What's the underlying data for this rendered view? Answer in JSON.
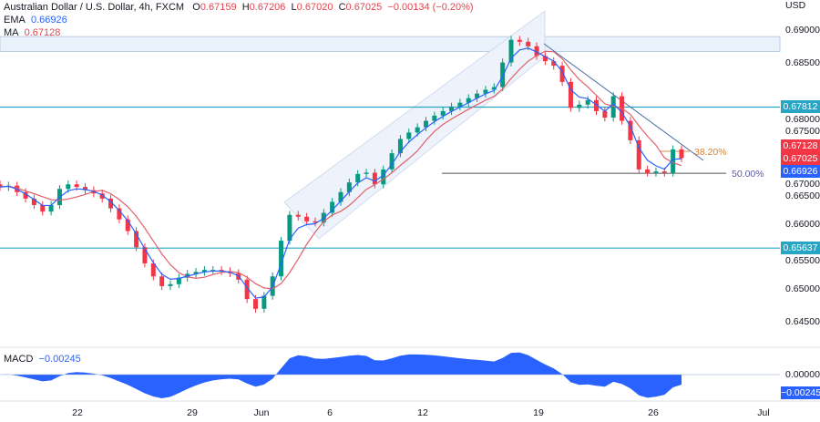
{
  "header": {
    "title": "Australian Dollar / U.S. Dollar, 4h, FXCM",
    "o_label": "O",
    "o": "0.67159",
    "h_label": "H",
    "h": "0.67206",
    "l_label": "L",
    "l": "0.67020",
    "c_label": "C",
    "c": "0.67025",
    "change": "−0.00134 (−0.20%)",
    "ema_label": "EMA",
    "ema": "0.66926",
    "ma_label": "MA",
    "ma": "0.67128"
  },
  "macd": {
    "label": "MACD",
    "value": "−0.00245",
    "zero_label": "0.00000",
    "tag": "−0.00245"
  },
  "colors": {
    "up": "#089981",
    "down": "#f23645",
    "ema": "#2962ff",
    "ma": "#e0606b",
    "level": "#26a6c4",
    "macd": "#2962ff"
  },
  "chart_data": {
    "type": "candlestick",
    "currency": "USD",
    "y_ticks": [
      "0.69000",
      "0.68500",
      "0.68000",
      "0.67500",
      "0.67000",
      "0.66500",
      "0.66000",
      "0.65500",
      "0.65000",
      "0.64500"
    ],
    "ylim": [
      0.6425,
      0.6925
    ],
    "x_ticks": [
      "22",
      "29",
      "Jun",
      "6",
      "12",
      "19",
      "26",
      "Jul"
    ],
    "closes": [
      0.6658,
      0.666,
      0.665,
      0.664,
      0.663,
      0.662,
      0.663,
      0.6655,
      0.6662,
      0.6658,
      0.6653,
      0.6648,
      0.664,
      0.6625,
      0.6608,
      0.659,
      0.6565,
      0.654,
      0.652,
      0.6505,
      0.6508,
      0.6518,
      0.6524,
      0.6527,
      0.653,
      0.653,
      0.6528,
      0.6525,
      0.6515,
      0.6485,
      0.647,
      0.649,
      0.652,
      0.6575,
      0.6615,
      0.6612,
      0.6605,
      0.6603,
      0.6618,
      0.6635,
      0.665,
      0.6665,
      0.6678,
      0.668,
      0.6662,
      0.6685,
      0.671,
      0.6732,
      0.6742,
      0.675,
      0.676,
      0.6768,
      0.6775,
      0.6782,
      0.6788,
      0.6795,
      0.6802,
      0.6808,
      0.6812,
      0.685,
      0.6885,
      0.6882,
      0.6875,
      0.686,
      0.6852,
      0.6845,
      0.682,
      0.678,
      0.6785,
      0.6792,
      0.6775,
      0.6765,
      0.6798,
      0.676,
      0.673,
      0.6685,
      0.668,
      0.6682,
      0.668,
      0.6716,
      0.67025
    ],
    "levels": [
      {
        "price": 0.67812,
        "label": "0.67812"
      },
      {
        "price": 0.65637,
        "label": "0.65637"
      }
    ],
    "resistance_zone": [
      0.6867,
      0.689
    ],
    "fib": [
      {
        "label": "38.20%",
        "price": 0.6713
      },
      {
        "label": "50.00%",
        "price": 0.6679
      }
    ],
    "price_tags": [
      {
        "label": "0.67128",
        "color": "#f23645"
      },
      {
        "label": "0.67025",
        "color": "#f23645"
      },
      {
        "label": "0.66926",
        "color": "#2962ff"
      }
    ]
  }
}
